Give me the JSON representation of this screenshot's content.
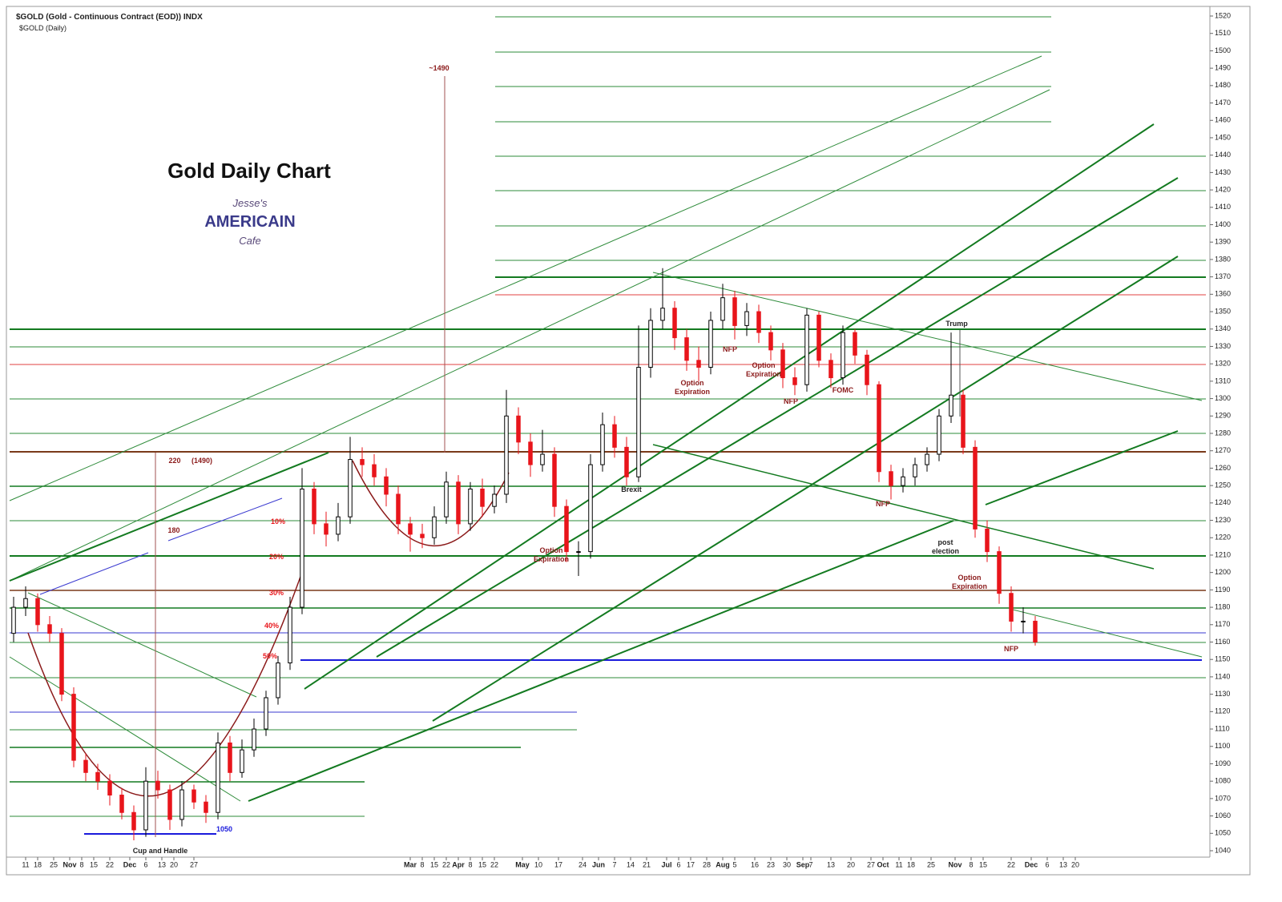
{
  "chart_data": {
    "type": "candlestick",
    "header": "$GOLD (Gold - Continuous Contract (EOD)) INDX",
    "subheader": "$GOLD (Daily)",
    "title": "Gold Daily Chart",
    "logo": [
      "Jesse's",
      "AMERICAIN",
      "Cafe"
    ],
    "up_color": "#000000",
    "down_color": "#e8151b",
    "ylim": [
      1040,
      1520
    ],
    "yticks": [
      1040,
      1050,
      1060,
      1070,
      1080,
      1090,
      1100,
      1110,
      1120,
      1130,
      1140,
      1150,
      1160,
      1170,
      1180,
      1190,
      1200,
      1210,
      1220,
      1230,
      1240,
      1250,
      1260,
      1270,
      1280,
      1290,
      1300,
      1310,
      1320,
      1330,
      1340,
      1350,
      1360,
      1370,
      1380,
      1390,
      1400,
      1410,
      1420,
      1430,
      1440,
      1450,
      1460,
      1470,
      1480,
      1490,
      1500,
      1510,
      1520
    ],
    "xlim": [
      0,
      300
    ],
    "xticks": [
      {
        "value": 4,
        "label": "11"
      },
      {
        "value": 7,
        "label": "18"
      },
      {
        "value": 11,
        "label": "25"
      },
      {
        "value": 15,
        "label": "Nov"
      },
      {
        "value": 18,
        "label": "8"
      },
      {
        "value": 21,
        "label": "15"
      },
      {
        "value": 25,
        "label": "22"
      },
      {
        "value": 30,
        "label": "Dec"
      },
      {
        "value": 34,
        "label": "6"
      },
      {
        "value": 38,
        "label": "13"
      },
      {
        "value": 41,
        "label": "20"
      },
      {
        "value": 46,
        "label": "27"
      },
      {
        "value": 100,
        "label": "Mar"
      },
      {
        "value": 103,
        "label": "8"
      },
      {
        "value": 106,
        "label": "15"
      },
      {
        "value": 109,
        "label": "22"
      },
      {
        "value": 112,
        "label": "Apr"
      },
      {
        "value": 115,
        "label": "8"
      },
      {
        "value": 118,
        "label": "15"
      },
      {
        "value": 121,
        "label": "22"
      },
      {
        "value": 128,
        "label": "May"
      },
      {
        "value": 132,
        "label": "10"
      },
      {
        "value": 137,
        "label": "17"
      },
      {
        "value": 143,
        "label": "24"
      },
      {
        "value": 147,
        "label": "Jun"
      },
      {
        "value": 151,
        "label": "7"
      },
      {
        "value": 155,
        "label": "14"
      },
      {
        "value": 159,
        "label": "21"
      },
      {
        "value": 164,
        "label": "Jul"
      },
      {
        "value": 167,
        "label": "6"
      },
      {
        "value": 170,
        "label": "17"
      },
      {
        "value": 174,
        "label": "28"
      },
      {
        "value": 178,
        "label": "Aug"
      },
      {
        "value": 181,
        "label": "5"
      },
      {
        "value": 186,
        "label": "16"
      },
      {
        "value": 190,
        "label": "23"
      },
      {
        "value": 194,
        "label": "30"
      },
      {
        "value": 198,
        "label": "Sep"
      },
      {
        "value": 200,
        "label": "7"
      },
      {
        "value": 205,
        "label": "13"
      },
      {
        "value": 210,
        "label": "20"
      },
      {
        "value": 215,
        "label": "27"
      },
      {
        "value": 218,
        "label": "Oct"
      },
      {
        "value": 222,
        "label": "11"
      },
      {
        "value": 225,
        "label": "18"
      },
      {
        "value": 230,
        "label": "25"
      },
      {
        "value": 236,
        "label": "Nov"
      },
      {
        "value": 240,
        "label": "8"
      },
      {
        "value": 243,
        "label": "15"
      },
      {
        "value": 250,
        "label": "22"
      },
      {
        "value": 255,
        "label": "Dec"
      },
      {
        "value": 259,
        "label": "6"
      },
      {
        "value": 263,
        "label": "13"
      },
      {
        "value": 266,
        "label": "20"
      }
    ],
    "x": [
      1,
      4,
      7,
      10,
      13,
      16,
      19,
      22,
      25,
      28,
      31,
      34,
      37,
      40,
      43,
      46,
      49,
      52,
      55,
      58,
      61,
      64,
      67,
      70,
      73,
      76,
      79,
      82,
      85,
      88,
      91,
      94,
      97,
      100,
      103,
      106,
      109,
      112,
      115,
      118,
      121,
      124,
      127,
      130,
      133,
      136,
      139,
      142,
      145,
      148,
      151,
      154,
      157,
      160,
      163,
      166,
      169,
      172,
      175,
      178,
      181,
      184,
      187,
      190,
      193,
      196,
      199,
      202,
      205,
      208,
      211,
      214,
      217,
      220,
      223,
      226,
      229,
      232,
      235,
      238,
      241,
      244,
      247,
      250,
      253,
      256
    ],
    "open": [
      1165,
      1180,
      1185,
      1170,
      1165,
      1130,
      1092,
      1085,
      1080,
      1072,
      1062,
      1052,
      1080,
      1075,
      1058,
      1075,
      1068,
      1062,
      1102,
      1085,
      1098,
      1110,
      1128,
      1148,
      1180,
      1248,
      1228,
      1222,
      1232,
      1265,
      1262,
      1255,
      1245,
      1228,
      1222,
      1220,
      1232,
      1252,
      1228,
      1248,
      1238,
      1245,
      1290,
      1275,
      1262,
      1268,
      1238,
      1212,
      1212,
      1262,
      1285,
      1272,
      1255,
      1318,
      1345,
      1352,
      1335,
      1322,
      1318,
      1345,
      1358,
      1342,
      1350,
      1338,
      1328,
      1312,
      1308,
      1348,
      1322,
      1312,
      1338,
      1325,
      1308,
      1258,
      1250,
      1255,
      1262,
      1268,
      1290,
      1302,
      1272,
      1225,
      1212,
      1188,
      1172,
      1172
    ],
    "high": [
      1186,
      1192,
      1188,
      1175,
      1168,
      1134,
      1096,
      1090,
      1084,
      1076,
      1066,
      1088,
      1086,
      1078,
      1080,
      1078,
      1072,
      1108,
      1106,
      1104,
      1116,
      1132,
      1152,
      1186,
      1260,
      1252,
      1235,
      1240,
      1278,
      1272,
      1268,
      1260,
      1250,
      1232,
      1228,
      1238,
      1258,
      1256,
      1252,
      1254,
      1250,
      1305,
      1295,
      1280,
      1282,
      1272,
      1242,
      1218,
      1268,
      1292,
      1290,
      1278,
      1342,
      1352,
      1375,
      1356,
      1340,
      1330,
      1350,
      1366,
      1362,
      1355,
      1354,
      1342,
      1332,
      1318,
      1352,
      1350,
      1326,
      1342,
      1340,
      1328,
      1310,
      1262,
      1260,
      1266,
      1272,
      1294,
      1338,
      1305,
      1276,
      1230,
      1215,
      1192,
      1180,
      1175
    ],
    "low": [
      1160,
      1175,
      1166,
      1160,
      1126,
      1088,
      1080,
      1075,
      1066,
      1058,
      1046,
      1048,
      1070,
      1052,
      1054,
      1064,
      1056,
      1058,
      1080,
      1082,
      1094,
      1106,
      1124,
      1144,
      1176,
      1222,
      1215,
      1218,
      1228,
      1255,
      1250,
      1238,
      1222,
      1212,
      1214,
      1216,
      1228,
      1222,
      1224,
      1232,
      1234,
      1240,
      1268,
      1255,
      1258,
      1232,
      1206,
      1198,
      1208,
      1258,
      1266,
      1250,
      1252,
      1312,
      1340,
      1328,
      1316,
      1310,
      1314,
      1340,
      1334,
      1336,
      1332,
      1322,
      1306,
      1302,
      1304,
      1318,
      1306,
      1308,
      1320,
      1302,
      1252,
      1242,
      1246,
      1250,
      1258,
      1264,
      1286,
      1268,
      1220,
      1206,
      1182,
      1166,
      1165,
      1158
    ],
    "close": [
      1180,
      1185,
      1170,
      1165,
      1130,
      1092,
      1085,
      1080,
      1072,
      1062,
      1052,
      1080,
      1075,
      1058,
      1075,
      1068,
      1062,
      1102,
      1085,
      1098,
      1110,
      1128,
      1148,
      1180,
      1248,
      1228,
      1222,
      1232,
      1265,
      1262,
      1255,
      1245,
      1228,
      1222,
      1220,
      1232,
      1252,
      1228,
      1248,
      1238,
      1245,
      1290,
      1275,
      1262,
      1268,
      1238,
      1212,
      1212,
      1262,
      1285,
      1272,
      1255,
      1318,
      1345,
      1352,
      1335,
      1322,
      1318,
      1345,
      1358,
      1342,
      1350,
      1338,
      1328,
      1312,
      1308,
      1348,
      1322,
      1312,
      1338,
      1325,
      1308,
      1258,
      1250,
      1255,
      1262,
      1268,
      1290,
      1302,
      1272,
      1225,
      1212,
      1188,
      1172,
      1172,
      1160
    ],
    "annotations": [
      {
        "text": [
          "~1490"
        ],
        "color": "#8b1a1a"
      },
      {
        "text": [
          "220"
        ],
        "color": "#8b1a1a"
      },
      {
        "text": [
          "(1490)"
        ],
        "color": "#8b1a1a"
      },
      {
        "text": [
          "180"
        ],
        "color": "#8b1a1a"
      },
      {
        "text": [
          "10%"
        ],
        "color": "#e8151b"
      },
      {
        "text": [
          "20%"
        ],
        "color": "#e8151b"
      },
      {
        "text": [
          "30%"
        ],
        "color": "#e8151b"
      },
      {
        "text": [
          "40%"
        ],
        "color": "#e8151b"
      },
      {
        "text": [
          "50%"
        ],
        "color": "#e8151b"
      },
      {
        "text": [
          "1050"
        ],
        "color": "#1a1adc"
      },
      {
        "text": [
          "Cup and Handle"
        ],
        "color": "#222222"
      },
      {
        "text": [
          "Brexit"
        ],
        "color": "#222222"
      },
      {
        "text": [
          "Option",
          "Expiration"
        ],
        "color": "#8b1a1a"
      },
      {
        "text": [
          "Option",
          "Expiration"
        ],
        "color": "#8b1a1a"
      },
      {
        "text": [
          "Option",
          "Expiration"
        ],
        "color": "#8b1a1a"
      },
      {
        "text": [
          "Option",
          "Expiration"
        ],
        "color": "#8b1a1a"
      },
      {
        "text": [
          "NFP"
        ],
        "color": "#8b1a1a"
      },
      {
        "text": [
          "NFP"
        ],
        "color": "#8b1a1a"
      },
      {
        "text": [
          "NFP"
        ],
        "color": "#8b1a1a"
      },
      {
        "text": [
          "NFP"
        ],
        "color": "#8b1a1a"
      },
      {
        "text": [
          "FOMC"
        ],
        "color": "#8b1a1a"
      },
      {
        "text": [
          "Trump"
        ],
        "color": "#222222"
      },
      {
        "text": [
          "post",
          "election"
        ],
        "color": "#222222"
      }
    ]
  }
}
